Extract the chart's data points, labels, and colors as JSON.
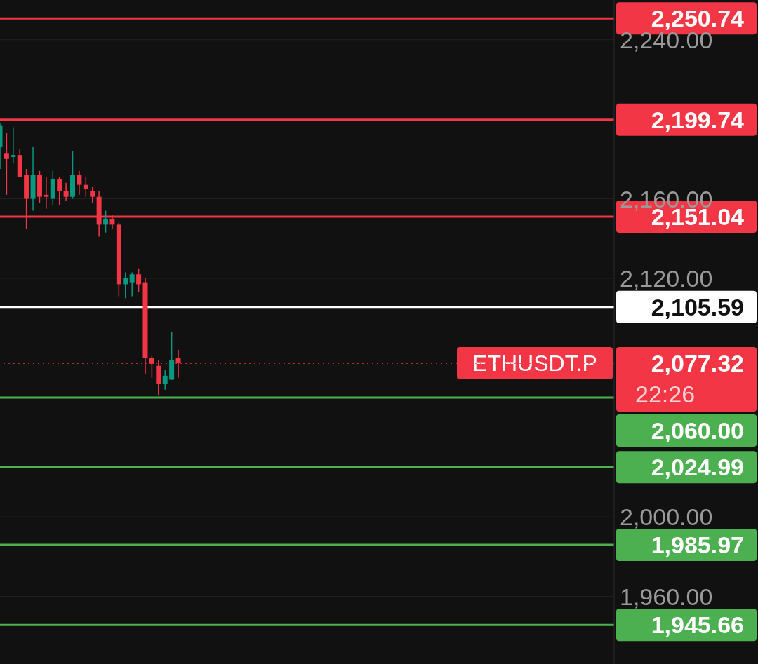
{
  "chart_data": {
    "type": "candlestick",
    "categories": [
      null,
      null,
      null,
      null,
      null,
      null,
      null,
      null,
      null,
      null,
      null,
      null,
      null,
      null,
      null,
      null,
      null,
      null,
      null,
      null,
      null,
      null,
      null,
      null,
      null,
      null,
      null,
      null,
      null,
      null,
      null,
      null,
      null,
      null,
      null,
      null,
      null,
      null,
      null,
      null,
      null,
      null,
      null,
      null,
      null,
      null,
      null,
      null,
      null,
      null,
      null,
      null,
      null,
      null,
      null,
      null,
      null,
      null,
      null,
      null,
      null,
      null,
      null,
      null,
      null,
      null,
      null,
      null,
      null,
      null,
      null,
      null,
      null,
      null,
      null,
      null,
      null,
      null,
      null,
      null,
      null,
      null,
      null,
      null,
      null,
      null,
      null,
      null,
      null,
      null,
      null,
      null,
      null,
      null
    ],
    "ohlc": [
      [
        2186,
        2198,
        2175,
        2197
      ],
      [
        2183,
        2193,
        2162,
        2180
      ],
      [
        2181,
        2196,
        2178,
        2182
      ],
      [
        2182,
        2185,
        2171,
        2171
      ],
      [
        2172,
        2175,
        2145,
        2160
      ],
      [
        2160,
        2186,
        2154,
        2172
      ],
      [
        2172,
        2174,
        2158,
        2161
      ],
      [
        2162,
        2171,
        2155,
        2161
      ],
      [
        2160,
        2174,
        2157,
        2170
      ],
      [
        2170,
        2171,
        2157,
        2164
      ],
      [
        2164,
        2168,
        2159,
        2161
      ],
      [
        2161,
        2184,
        2160,
        2172
      ],
      [
        2172,
        2174,
        2162,
        2167
      ],
      [
        2167,
        2171,
        2161,
        2165
      ],
      [
        2164,
        2166,
        2158,
        2161
      ],
      [
        2161,
        2164,
        2141,
        2147
      ],
      [
        2147,
        2154,
        2143,
        2150
      ],
      [
        2150,
        2152,
        2145,
        2147
      ],
      [
        2147,
        2148,
        2111,
        2117
      ],
      [
        2117,
        2123,
        2110,
        2120
      ],
      [
        2118,
        2123,
        2111,
        2122
      ],
      [
        2122,
        2125,
        2113,
        2117
      ],
      [
        2118,
        2120,
        2072,
        2080
      ],
      [
        2080,
        2081,
        2070,
        2077
      ],
      [
        2076,
        2079,
        2061,
        2067
      ],
      [
        2067,
        2074,
        2064,
        2071
      ],
      [
        2069,
        2093,
        2069,
        2079
      ],
      [
        2080,
        2084,
        2070,
        2077.32
      ],
      null,
      null,
      null,
      null,
      null,
      null,
      null,
      null,
      null,
      null,
      null,
      null,
      null,
      null,
      null,
      null,
      null,
      null,
      null,
      null,
      null,
      null,
      null,
      null,
      null,
      null,
      null,
      null,
      null,
      null,
      null,
      null,
      null,
      null,
      null,
      null,
      null,
      null,
      null,
      null,
      null,
      null,
      null,
      null,
      null,
      null,
      null,
      null,
      null,
      null,
      null,
      null,
      null,
      null,
      null,
      null,
      null,
      null,
      null,
      null,
      null,
      null,
      null,
      null,
      null,
      null
    ],
    "colors": [
      "#089981",
      "#f23645",
      "#089981",
      "#f23645",
      "#f23645",
      "#089981",
      "#f23645",
      "#f23645",
      "#089981",
      "#f23645",
      "#f23645",
      "#089981",
      "#f23645",
      "#f23645",
      "#f23645",
      "#f23645",
      "#089981",
      "#f23645",
      "#f23645",
      "#089981",
      "#089981",
      "#f23645",
      "#f23645",
      "#f23645",
      "#f23645",
      "#089981",
      "#089981",
      "#f23645",
      null,
      null,
      null,
      null,
      null,
      null,
      null,
      null,
      null,
      null,
      null,
      null,
      null,
      null,
      null,
      null,
      null,
      null,
      null,
      null,
      null,
      null,
      null,
      null,
      null,
      null,
      null,
      null,
      null,
      null,
      null,
      null,
      null,
      null,
      null,
      null,
      null,
      null,
      null,
      null,
      null,
      null,
      null,
      null,
      null,
      null,
      null,
      null,
      null,
      null,
      null,
      null,
      null,
      null,
      null,
      null,
      null,
      null,
      null,
      null,
      null,
      null,
      null,
      null,
      null,
      null
    ],
    "ylim": [
      1926,
      2260
    ],
    "yticks": [
      {
        "value": 1960,
        "label": "1,960.00"
      },
      {
        "value": 2000,
        "label": "2,000.00"
      },
      {
        "value": 2120,
        "label": "2,120.00"
      },
      {
        "value": 2160,
        "label": "2,160.00"
      },
      {
        "value": 2240,
        "label": "2,240.00"
      }
    ],
    "tick_labels": "y",
    "grid": "y",
    "ref_lines": [
      {
        "axis": "y",
        "value": 2250.74,
        "label": "2,250.74",
        "color": "#f23645"
      },
      {
        "axis": "y",
        "value": 2199.74,
        "label": "2,199.74",
        "color": "#f23645"
      },
      {
        "axis": "y",
        "value": 2151.04,
        "label": "2,151.04",
        "color": "#f23645"
      },
      {
        "axis": "y",
        "value": 2105.59,
        "label": "2,105.59",
        "color": "#ffffff"
      },
      {
        "axis": "y",
        "value": 2077.32,
        "label": "2,077.32",
        "color": "#f23645",
        "line_style": "dotted"
      },
      {
        "axis": "y",
        "value": 2060,
        "label": "2,060.00",
        "color": "#4caf50"
      },
      {
        "axis": "y",
        "value": 2024.99,
        "label": "2,024.99",
        "color": "#4caf50"
      },
      {
        "axis": "y",
        "value": 1985.97,
        "label": "1,985.97",
        "color": "#4caf50"
      },
      {
        "axis": "y",
        "value": 1945.66,
        "label": "1,945.66",
        "color": "#4caf50"
      }
    ],
    "annotations": [
      {
        "text": "ETHUSDT.P",
        "y": 2077.32
      },
      "22:26"
    ]
  }
}
